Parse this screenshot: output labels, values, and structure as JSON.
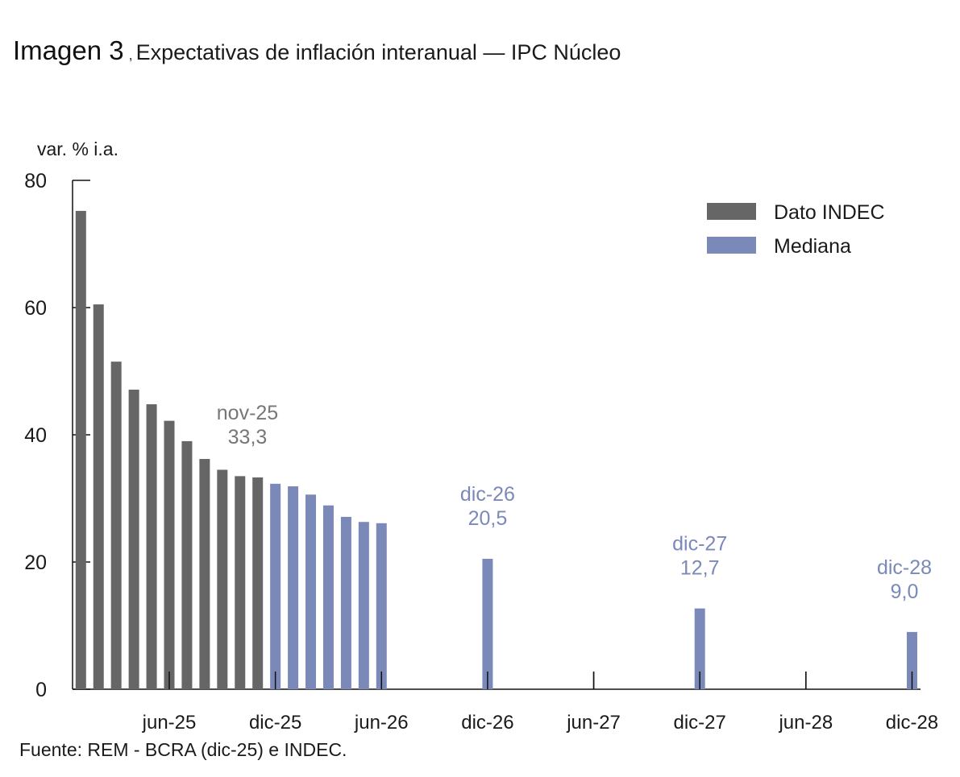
{
  "header": {
    "image_label": "Imagen 3",
    "separator": ",",
    "title": "Expectativas de inflación interanual — IPC Núcleo"
  },
  "source": "Fuente: REM - BCRA (dic-25) e INDEC.",
  "colors": {
    "indec": "#666666",
    "mediana": "#7b89b8",
    "axis": "#111111",
    "text": "#1a1a1a",
    "annot_gray": "#777777"
  },
  "chart_data": {
    "type": "bar",
    "title": "Expectativas de inflación interanual — IPC Núcleo",
    "ylabel": "var. % i.a.",
    "xlabel": "",
    "ylim": [
      0,
      80
    ],
    "yticks": [
      0,
      20,
      40,
      60,
      80
    ],
    "x_month_range": [
      "ene-25",
      "dic-28"
    ],
    "xticks": [
      "jun-25",
      "dic-25",
      "jun-26",
      "dic-26",
      "jun-27",
      "dic-27",
      "jun-28",
      "dic-28"
    ],
    "legend": {
      "position": "top-right",
      "entries": [
        "Dato INDEC",
        "Mediana"
      ]
    },
    "grid": false,
    "series": [
      {
        "name": "Dato INDEC",
        "points": [
          {
            "x": "ene-25",
            "y": 75.2
          },
          {
            "x": "feb-25",
            "y": 60.5
          },
          {
            "x": "mar-25",
            "y": 51.5
          },
          {
            "x": "abr-25",
            "y": 47.1
          },
          {
            "x": "may-25",
            "y": 44.8
          },
          {
            "x": "jun-25",
            "y": 42.2
          },
          {
            "x": "jul-25",
            "y": 39.0
          },
          {
            "x": "ago-25",
            "y": 36.2
          },
          {
            "x": "sep-25",
            "y": 34.5
          },
          {
            "x": "oct-25",
            "y": 33.5
          },
          {
            "x": "nov-25",
            "y": 33.3
          }
        ]
      },
      {
        "name": "Mediana",
        "points": [
          {
            "x": "dic-25",
            "y": 32.3
          },
          {
            "x": "ene-26",
            "y": 31.9
          },
          {
            "x": "feb-26",
            "y": 30.6
          },
          {
            "x": "mar-26",
            "y": 28.9
          },
          {
            "x": "abr-26",
            "y": 27.1
          },
          {
            "x": "may-26",
            "y": 26.3
          },
          {
            "x": "jun-26",
            "y": 26.1
          },
          {
            "x": "dic-26",
            "y": 20.5
          },
          {
            "x": "dic-27",
            "y": 12.7
          },
          {
            "x": "dic-28",
            "y": 9.0
          }
        ]
      }
    ],
    "annotations": [
      {
        "x": "nov-25",
        "lines": [
          "nov-25",
          "33,3"
        ],
        "series": "Dato INDEC"
      },
      {
        "x": "dic-26",
        "lines": [
          "dic-26",
          "20,5"
        ],
        "series": "Mediana"
      },
      {
        "x": "dic-27",
        "lines": [
          "dic-27",
          "12,7"
        ],
        "series": "Mediana"
      },
      {
        "x": "dic-28",
        "lines": [
          "dic-28",
          "9,0"
        ],
        "series": "Mediana"
      }
    ]
  }
}
